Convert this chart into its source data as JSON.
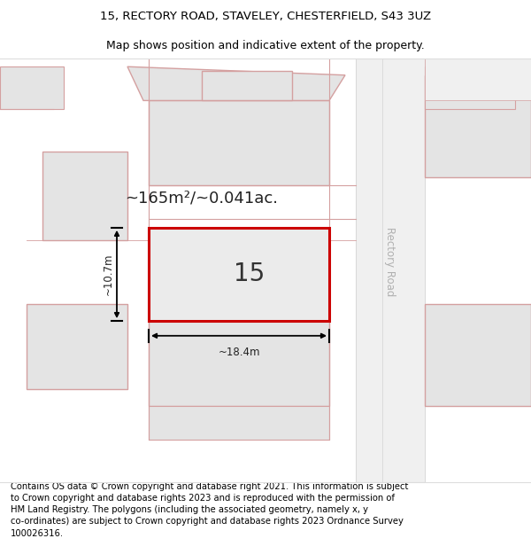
{
  "title_line1": "15, RECTORY ROAD, STAVELEY, CHESTERFIELD, S43 3UZ",
  "title_line2": "Map shows position and indicative extent of the property.",
  "footer_text": "Contains OS data © Crown copyright and database right 2021. This information is subject to Crown copyright and database rights 2023 and is reproduced with the permission of HM Land Registry. The polygons (including the associated geometry, namely x, y co-ordinates) are subject to Crown copyright and database rights 2023 Ordnance Survey 100026316.",
  "bg_color": "#ffffff",
  "map_bg": "#f7f7f7",
  "parcel_fill": "#e4e4e4",
  "parcel_stroke": "#d4a0a0",
  "road_fill": "#f0f0f0",
  "road_stroke": "#d4a0a0",
  "main_fill": "#ebebeb",
  "main_stroke": "#cc0000",
  "road_label": "Rectory Road",
  "area_label": "~165m²/~0.041ac.",
  "number_label": "15",
  "dim_width": "~18.4m",
  "dim_height": "~10.7m",
  "title_fontsize": 9.5,
  "subtitle_fontsize": 9.0,
  "footer_fontsize": 7.2,
  "road_label_fontsize": 8.5,
  "area_fontsize": 13,
  "number_fontsize": 20,
  "dim_fontsize": 8.5
}
